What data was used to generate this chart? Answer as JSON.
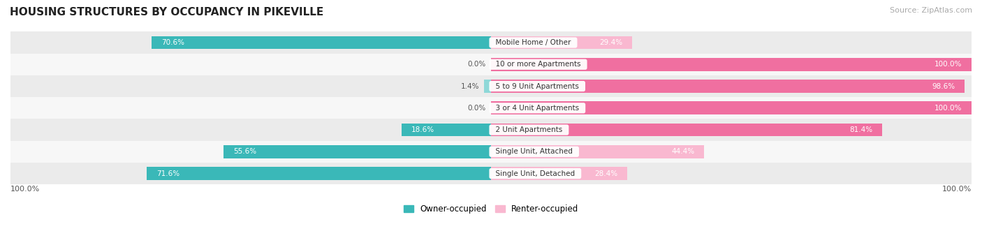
{
  "title": "HOUSING STRUCTURES BY OCCUPANCY IN PIKEVILLE",
  "source": "Source: ZipAtlas.com",
  "categories": [
    "Single Unit, Detached",
    "Single Unit, Attached",
    "2 Unit Apartments",
    "3 or 4 Unit Apartments",
    "5 to 9 Unit Apartments",
    "10 or more Apartments",
    "Mobile Home / Other"
  ],
  "owner_pct": [
    71.6,
    55.6,
    18.6,
    0.0,
    1.4,
    0.0,
    70.6
  ],
  "renter_pct": [
    28.4,
    44.4,
    81.4,
    100.0,
    98.6,
    100.0,
    29.4
  ],
  "owner_color": "#3ab8b8",
  "owner_color_light": "#8ed8d8",
  "renter_color": "#f06fa0",
  "renter_color_light": "#f9b8d0",
  "row_bg_even": "#ebebeb",
  "row_bg_odd": "#f7f7f7",
  "bar_height": 0.6,
  "figsize": [
    14.06,
    3.41
  ],
  "dpi": 100,
  "legend_owner": "Owner-occupied",
  "legend_renter": "Renter-occupied",
  "bottom_left_label": "100.0%",
  "bottom_right_label": "100.0%"
}
